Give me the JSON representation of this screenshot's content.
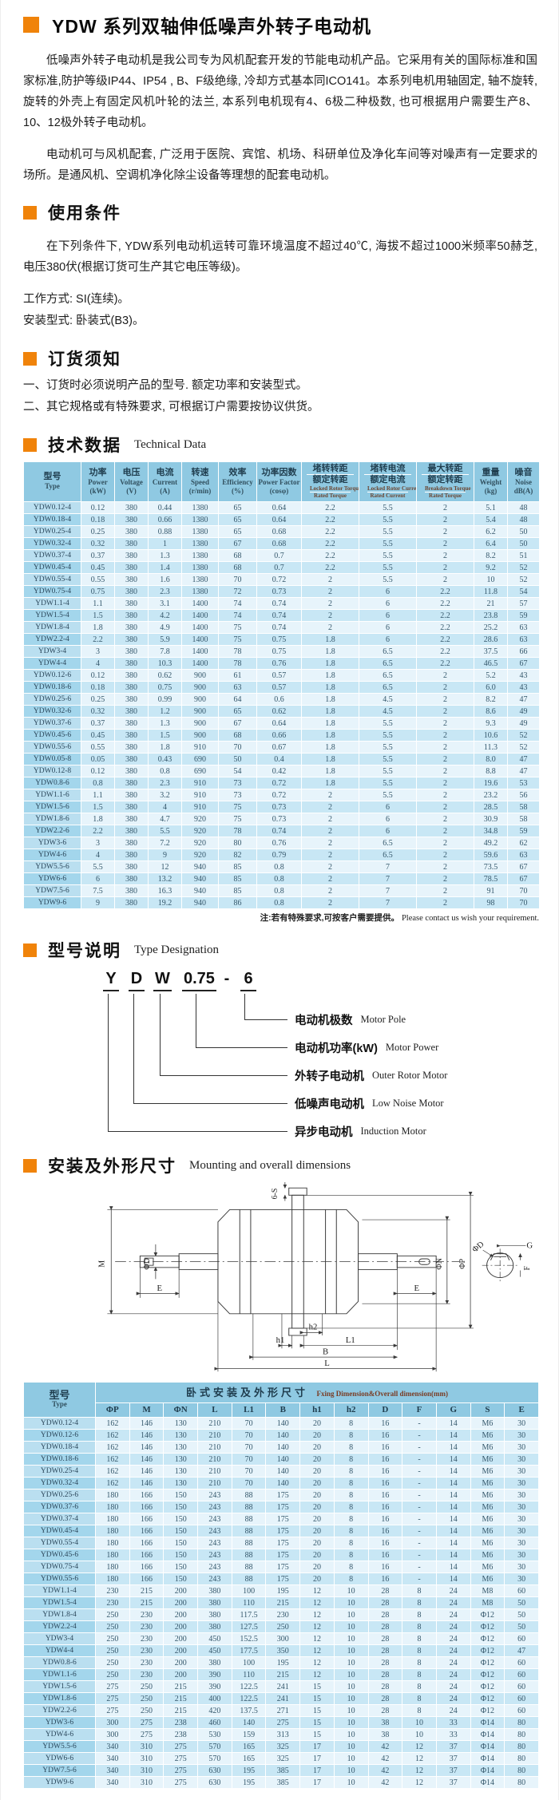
{
  "page": {
    "title": "YDW 系列双轴伸低噪声外转子电动机"
  },
  "sections": {
    "intro": {
      "p1": "低噪声外转子电动机是我公司专为风机配套开发的节能电动机产品。它采用有关的国际标准和国家标准,防护等级IP44、IP54 , B、F级绝缘, 冷却方式基本同ICO141。本系列电机用轴固定, 轴不旋转, 旋转的外壳上有固定风机叶轮的法兰, 本系列电机现有4、6极二种极数, 也可根据用户需要生产8、10、12极外转子电动机。",
      "p2": "电动机可与风机配套, 广泛用于医院、宾馆、机场、科研单位及净化车间等对噪声有一定要求的场所。是通风机、空调机净化除尘设备等理想的配套电动机。"
    },
    "usage": {
      "heading_zh": "使用条件",
      "p1": "在下列条件下, YDW系列电动机运转可靠环境温度不超过40℃, 海拔不超过1000米频率50赫芝, 电压380伏(根据订货可生产其它电压等级)。",
      "line2": "工作方式: SI(连续)。",
      "line3": "安装型式: 卧装式(B3)。"
    },
    "ordering": {
      "heading_zh": "订货须知",
      "item1": "一、订货时必须说明产品的型号. 额定功率和安装型式。",
      "item2": "二、其它规格或有特殊要求, 可根据订户需要按协议供货。"
    },
    "technical": {
      "heading_zh": "技术数据",
      "heading_en": "Technical Data",
      "note_zh": "注:若有特殊要求,可按客户需要提供。",
      "note_en": "Please contact us wish your requirement."
    },
    "type_designation": {
      "heading_zh": "型号说明",
      "heading_en": "Type Designation",
      "code_parts": [
        "Y",
        "D",
        "W",
        "0.75",
        "-",
        "6"
      ],
      "labels": [
        {
          "zh": "电动机极数",
          "en": "Motor Pole"
        },
        {
          "zh": "电动机功率(kW)",
          "en": "Motor Power"
        },
        {
          "zh": "外转子电动机",
          "en": "Outer Rotor Motor"
        },
        {
          "zh": "低噪声电动机",
          "en": "Low Noise Motor"
        },
        {
          "zh": "异步电动机",
          "en": "Induction Motor"
        }
      ]
    },
    "mounting": {
      "heading_zh": "安装及外形尺寸",
      "heading_en": "Mounting and overall dimensions",
      "dims": {
        "s6": "6-S",
        "m": "M",
        "phiD": "ΦD",
        "e": "E",
        "e2": "E",
        "h1": "h1",
        "h2": "h2",
        "l1": "L1",
        "b": "B",
        "l": "L",
        "phiN": "ΦN",
        "phiP": "ΦP",
        "g": "G",
        "f": "F",
        "phiD2": "ΦD"
      }
    }
  },
  "tech_table": {
    "columns": [
      {
        "zh": [
          "型号"
        ],
        "en": [
          "Type"
        ]
      },
      {
        "zh": [
          "功率"
        ],
        "en": [
          "Power",
          "(kW)"
        ]
      },
      {
        "zh": [
          "电压"
        ],
        "en": [
          "Voltage",
          "(V)"
        ]
      },
      {
        "zh": [
          "电流"
        ],
        "en": [
          "Current",
          "(A)"
        ]
      },
      {
        "zh": [
          "转速"
        ],
        "en": [
          "Speed",
          "(r/min)"
        ]
      },
      {
        "zh": [
          "效率"
        ],
        "en": [
          "Efficiency",
          "(%)"
        ]
      },
      {
        "zh": [
          "功率因数"
        ],
        "en": [
          "Power Factor",
          "(cosφ)"
        ]
      },
      {
        "zh": [
          "堵转转距",
          "额定转距"
        ],
        "en": [
          "Locked Rotor Torque",
          "Rated Torque"
        ],
        "tiny": true
      },
      {
        "zh": [
          "堵转电流",
          "额定电流"
        ],
        "en": [
          "Locked Rotor Current",
          "Rated Current"
        ],
        "tiny": true
      },
      {
        "zh": [
          "最大转距",
          "额定转距"
        ],
        "en": [
          "Breakdown Torque",
          "Rated Torque"
        ],
        "tiny": true
      },
      {
        "zh": [
          "重量"
        ],
        "en": [
          "Weight",
          "(kg)"
        ]
      },
      {
        "zh": [
          "噪音"
        ],
        "en": [
          "Noise",
          "dB(A)"
        ]
      }
    ],
    "rows": [
      [
        "YDW0.12-4",
        "0.12",
        "380",
        "0.44",
        "1380",
        "65",
        "0.64",
        "2.2",
        "5.5",
        "2",
        "5.1",
        "48"
      ],
      [
        "YDW0.18-4",
        "0.18",
        "380",
        "0.66",
        "1380",
        "65",
        "0.64",
        "2.2",
        "5.5",
        "2",
        "5.4",
        "48"
      ],
      [
        "YDW0.25-4",
        "0.25",
        "380",
        "0.88",
        "1380",
        "65",
        "0.68",
        "2.2",
        "5.5",
        "2",
        "6.2",
        "50"
      ],
      [
        "YDW0.32-4",
        "0.32",
        "380",
        "1",
        "1380",
        "67",
        "0.68",
        "2.2",
        "5.5",
        "2",
        "6.4",
        "50"
      ],
      [
        "YDW0.37-4",
        "0.37",
        "380",
        "1.3",
        "1380",
        "68",
        "0.7",
        "2.2",
        "5.5",
        "2",
        "8.2",
        "51"
      ],
      [
        "YDW0.45-4",
        "0.45",
        "380",
        "1.4",
        "1380",
        "68",
        "0.7",
        "2.2",
        "5.5",
        "2",
        "9.2",
        "52"
      ],
      [
        "YDW0.55-4",
        "0.55",
        "380",
        "1.6",
        "1380",
        "70",
        "0.72",
        "2",
        "5.5",
        "2",
        "10",
        "52"
      ],
      [
        "YDW0.75-4",
        "0.75",
        "380",
        "2.3",
        "1380",
        "72",
        "0.73",
        "2",
        "6",
        "2.2",
        "11.8",
        "54"
      ],
      [
        "YDW1.1-4",
        "1.1",
        "380",
        "3.1",
        "1400",
        "74",
        "0.74",
        "2",
        "6",
        "2.2",
        "21",
        "57"
      ],
      [
        "YDW1.5-4",
        "1.5",
        "380",
        "4.2",
        "1400",
        "74",
        "0.74",
        "2",
        "6",
        "2.2",
        "23.8",
        "59"
      ],
      [
        "YDW1.8-4",
        "1.8",
        "380",
        "4.9",
        "1400",
        "75",
        "0.74",
        "2",
        "6",
        "2.2",
        "25.2",
        "63"
      ],
      [
        "YDW2.2-4",
        "2.2",
        "380",
        "5.9",
        "1400",
        "75",
        "0.75",
        "1.8",
        "6",
        "2.2",
        "28.6",
        "63"
      ],
      [
        "YDW3-4",
        "3",
        "380",
        "7.8",
        "1400",
        "78",
        "0.75",
        "1.8",
        "6.5",
        "2.2",
        "37.5",
        "66"
      ],
      [
        "YDW4-4",
        "4",
        "380",
        "10.3",
        "1400",
        "78",
        "0.76",
        "1.8",
        "6.5",
        "2.2",
        "46.5",
        "67"
      ],
      [
        "YDW0.12-6",
        "0.12",
        "380",
        "0.62",
        "900",
        "61",
        "0.57",
        "1.8",
        "6.5",
        "2",
        "5.2",
        "43"
      ],
      [
        "YDW0.18-6",
        "0.18",
        "380",
        "0.75",
        "900",
        "63",
        "0.57",
        "1.8",
        "6.5",
        "2",
        "6.0",
        "43"
      ],
      [
        "YDW0.25-6",
        "0.25",
        "380",
        "0.99",
        "900",
        "64",
        "0.6",
        "1.8",
        "4.5",
        "2",
        "8.2",
        "47"
      ],
      [
        "YDW0.32-6",
        "0.32",
        "380",
        "1.2",
        "900",
        "65",
        "0.62",
        "1.8",
        "4.5",
        "2",
        "8.6",
        "49"
      ],
      [
        "YDW0.37-6",
        "0.37",
        "380",
        "1.3",
        "900",
        "67",
        "0.64",
        "1.8",
        "5.5",
        "2",
        "9.3",
        "49"
      ],
      [
        "YDW0.45-6",
        "0.45",
        "380",
        "1.5",
        "900",
        "68",
        "0.66",
        "1.8",
        "5.5",
        "2",
        "10.6",
        "52"
      ],
      [
        "YDW0.55-6",
        "0.55",
        "380",
        "1.8",
        "910",
        "70",
        "0.67",
        "1.8",
        "5.5",
        "2",
        "11.3",
        "52"
      ],
      [
        "YDW0.05-8",
        "0.05",
        "380",
        "0.43",
        "690",
        "50",
        "0.4",
        "1.8",
        "5.5",
        "2",
        "8.0",
        "47"
      ],
      [
        "YDW0.12-8",
        "0.12",
        "380",
        "0.8",
        "690",
        "54",
        "0.42",
        "1.8",
        "5.5",
        "2",
        "8.8",
        "47"
      ],
      [
        "YDW0.8-6",
        "0.8",
        "380",
        "2.3",
        "910",
        "73",
        "0.72",
        "1.8",
        "5.5",
        "2",
        "19.6",
        "53"
      ],
      [
        "YDW1.1-6",
        "1.1",
        "380",
        "3.2",
        "910",
        "73",
        "0.72",
        "2",
        "5.5",
        "2",
        "23.2",
        "56"
      ],
      [
        "YDW1.5-6",
        "1.5",
        "380",
        "4",
        "910",
        "75",
        "0.73",
        "2",
        "6",
        "2",
        "28.5",
        "58"
      ],
      [
        "YDW1.8-6",
        "1.8",
        "380",
        "4.7",
        "920",
        "75",
        "0.73",
        "2",
        "6",
        "2",
        "30.9",
        "58"
      ],
      [
        "YDW2.2-6",
        "2.2",
        "380",
        "5.5",
        "920",
        "78",
        "0.74",
        "2",
        "6",
        "2",
        "34.8",
        "59"
      ],
      [
        "YDW3-6",
        "3",
        "380",
        "7.2",
        "920",
        "80",
        "0.76",
        "2",
        "6.5",
        "2",
        "49.2",
        "62"
      ],
      [
        "YDW4-6",
        "4",
        "380",
        "9",
        "920",
        "82",
        "0.79",
        "2",
        "6.5",
        "2",
        "59.6",
        "63"
      ],
      [
        "YDW5.5-6",
        "5.5",
        "380",
        "12",
        "940",
        "85",
        "0.8",
        "2",
        "7",
        "2",
        "73.5",
        "67"
      ],
      [
        "YDW6-6",
        "6",
        "380",
        "13.2",
        "940",
        "85",
        "0.8",
        "2",
        "7",
        "2",
        "78.5",
        "67"
      ],
      [
        "YDW7.5-6",
        "7.5",
        "380",
        "16.3",
        "940",
        "85",
        "0.8",
        "2",
        "7",
        "2",
        "91",
        "70"
      ],
      [
        "YDW9-6",
        "9",
        "380",
        "19.2",
        "940",
        "86",
        "0.8",
        "2",
        "7",
        "2",
        "98",
        "70"
      ]
    ]
  },
  "dim_table": {
    "type_col_zh": "型号",
    "type_col_en": "Type",
    "group_title_zh": "卧式安装及外形尺寸",
    "group_title_en": "Fxing Dimension&Overall dimension(mm)",
    "columns": [
      "ΦP",
      "M",
      "ΦN",
      "L",
      "L1",
      "B",
      "h1",
      "h2",
      "D",
      "F",
      "G",
      "S",
      "E"
    ],
    "rows": [
      [
        "YDW0.12-4",
        "162",
        "146",
        "130",
        "210",
        "70",
        "140",
        "20",
        "8",
        "16",
        "-",
        "14",
        "M6",
        "30"
      ],
      [
        "YDW0.12-6",
        "162",
        "146",
        "130",
        "210",
        "70",
        "140",
        "20",
        "8",
        "16",
        "-",
        "14",
        "M6",
        "30"
      ],
      [
        "YDW0.18-4",
        "162",
        "146",
        "130",
        "210",
        "70",
        "140",
        "20",
        "8",
        "16",
        "-",
        "14",
        "M6",
        "30"
      ],
      [
        "YDW0.18-6",
        "162",
        "146",
        "130",
        "210",
        "70",
        "140",
        "20",
        "8",
        "16",
        "-",
        "14",
        "M6",
        "30"
      ],
      [
        "YDW0.25-4",
        "162",
        "146",
        "130",
        "210",
        "70",
        "140",
        "20",
        "8",
        "16",
        "-",
        "14",
        "M6",
        "30"
      ],
      [
        "YDW0.32-4",
        "162",
        "146",
        "130",
        "210",
        "70",
        "140",
        "20",
        "8",
        "16",
        "-",
        "14",
        "M6",
        "30"
      ],
      [
        "YDW0.25-6",
        "180",
        "166",
        "150",
        "243",
        "88",
        "175",
        "20",
        "8",
        "16",
        "-",
        "14",
        "M6",
        "30"
      ],
      [
        "YDW0.37-6",
        "180",
        "166",
        "150",
        "243",
        "88",
        "175",
        "20",
        "8",
        "16",
        "-",
        "14",
        "M6",
        "30"
      ],
      [
        "YDW0.37-4",
        "180",
        "166",
        "150",
        "243",
        "88",
        "175",
        "20",
        "8",
        "16",
        "-",
        "14",
        "M6",
        "30"
      ],
      [
        "YDW0.45-4",
        "180",
        "166",
        "150",
        "243",
        "88",
        "175",
        "20",
        "8",
        "16",
        "-",
        "14",
        "M6",
        "30"
      ],
      [
        "YDW0.55-4",
        "180",
        "166",
        "150",
        "243",
        "88",
        "175",
        "20",
        "8",
        "16",
        "-",
        "14",
        "M6",
        "30"
      ],
      [
        "YDW0.45-6",
        "180",
        "166",
        "150",
        "243",
        "88",
        "175",
        "20",
        "8",
        "16",
        "-",
        "14",
        "M6",
        "30"
      ],
      [
        "YDW0.75-4",
        "180",
        "166",
        "150",
        "243",
        "88",
        "175",
        "20",
        "8",
        "16",
        "-",
        "14",
        "M6",
        "30"
      ],
      [
        "YDW0.55-6",
        "180",
        "166",
        "150",
        "243",
        "88",
        "175",
        "20",
        "8",
        "16",
        "-",
        "14",
        "M6",
        "30"
      ],
      [
        "YDW1.1-4",
        "230",
        "215",
        "200",
        "380",
        "100",
        "195",
        "12",
        "10",
        "28",
        "8",
        "24",
        "M8",
        "60"
      ],
      [
        "YDW1.5-4",
        "230",
        "215",
        "200",
        "380",
        "110",
        "215",
        "12",
        "10",
        "28",
        "8",
        "24",
        "M8",
        "50"
      ],
      [
        "YDW1.8-4",
        "250",
        "230",
        "200",
        "380",
        "117.5",
        "230",
        "12",
        "10",
        "28",
        "8",
        "24",
        "Φ12",
        "50"
      ],
      [
        "YDW2.2-4",
        "250",
        "230",
        "200",
        "380",
        "127.5",
        "250",
        "12",
        "10",
        "28",
        "8",
        "24",
        "Φ12",
        "50"
      ],
      [
        "YDW3-4",
        "250",
        "230",
        "200",
        "450",
        "152.5",
        "300",
        "12",
        "10",
        "28",
        "8",
        "24",
        "Φ12",
        "60"
      ],
      [
        "YDW4-4",
        "250",
        "230",
        "200",
        "450",
        "177.5",
        "350",
        "12",
        "10",
        "28",
        "8",
        "24",
        "Φ12",
        "47"
      ],
      [
        "YDW0.8-6",
        "250",
        "230",
        "200",
        "380",
        "100",
        "195",
        "12",
        "10",
        "28",
        "8",
        "24",
        "Φ12",
        "60"
      ],
      [
        "YDW1.1-6",
        "250",
        "230",
        "200",
        "390",
        "110",
        "215",
        "12",
        "10",
        "28",
        "8",
        "24",
        "Φ12",
        "60"
      ],
      [
        "YDW1.5-6",
        "275",
        "250",
        "215",
        "390",
        "122.5",
        "241",
        "15",
        "10",
        "28",
        "8",
        "24",
        "Φ12",
        "60"
      ],
      [
        "YDW1.8-6",
        "275",
        "250",
        "215",
        "400",
        "122.5",
        "241",
        "15",
        "10",
        "28",
        "8",
        "24",
        "Φ12",
        "60"
      ],
      [
        "YDW2.2-6",
        "275",
        "250",
        "215",
        "420",
        "137.5",
        "271",
        "15",
        "10",
        "28",
        "8",
        "24",
        "Φ12",
        "60"
      ],
      [
        "YDW3-6",
        "300",
        "275",
        "238",
        "460",
        "140",
        "275",
        "15",
        "10",
        "38",
        "10",
        "33",
        "Φ14",
        "80"
      ],
      [
        "YDW4-6",
        "300",
        "275",
        "238",
        "530",
        "159",
        "313",
        "15",
        "10",
        "38",
        "10",
        "33",
        "Φ14",
        "80"
      ],
      [
        "YDW5.5-6",
        "340",
        "310",
        "275",
        "570",
        "165",
        "325",
        "17",
        "10",
        "42",
        "12",
        "37",
        "Φ14",
        "80"
      ],
      [
        "YDW6-6",
        "340",
        "310",
        "275",
        "570",
        "165",
        "325",
        "17",
        "10",
        "42",
        "12",
        "37",
        "Φ14",
        "80"
      ],
      [
        "YDW7.5-6",
        "340",
        "310",
        "275",
        "630",
        "195",
        "385",
        "17",
        "10",
        "42",
        "12",
        "37",
        "Φ14",
        "80"
      ],
      [
        "YDW9-6",
        "340",
        "310",
        "275",
        "630",
        "195",
        "385",
        "17",
        "10",
        "42",
        "12",
        "37",
        "Φ14",
        "80"
      ]
    ]
  },
  "colors": {
    "accent_orange": "#f0830a",
    "table_header_blue": "#8fc9e2",
    "row_light": "#e7f4fb",
    "row_dark": "#c8e7f5"
  }
}
